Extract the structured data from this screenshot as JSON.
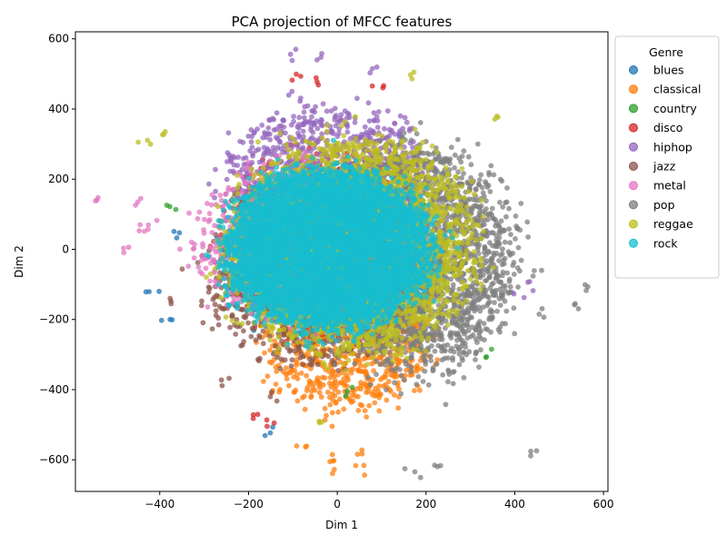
{
  "chart_data": {
    "type": "scatter",
    "title": "PCA projection of MFCC features",
    "xlabel": "Dim 1",
    "ylabel": "Dim 2",
    "xlim": [
      -590,
      610
    ],
    "ylim": [
      -690,
      620
    ],
    "xticks": [
      -400,
      -200,
      0,
      200,
      400,
      600
    ],
    "yticks": [
      -600,
      -400,
      -200,
      0,
      200,
      400,
      600
    ],
    "xtick_labels": [
      "−400",
      "−200",
      "0",
      "200",
      "400",
      "600"
    ],
    "ytick_labels": [
      "−600",
      "−400",
      "−200",
      "0",
      "200",
      "400",
      "600"
    ],
    "grid": false,
    "legend": {
      "title": "Genre",
      "placement": "outside-right-top"
    },
    "series": [
      {
        "name": "blues",
        "color": "#1f77b4",
        "center": [
          -20,
          -40
        ],
        "spread": [
          170,
          160
        ],
        "count": 900,
        "tails": [
          [
            -420,
            -120
          ],
          [
            -380,
            -200
          ],
          [
            -150,
            -520
          ],
          [
            -360,
            40
          ]
        ]
      },
      {
        "name": "classical",
        "color": "#ff7f0e",
        "center": [
          20,
          -230
        ],
        "spread": [
          140,
          170
        ],
        "count": 900,
        "tails": [
          [
            0,
            -620
          ],
          [
            60,
            -620
          ],
          [
            -80,
            -555
          ],
          [
            40,
            -580
          ],
          [
            -10,
            -600
          ]
        ]
      },
      {
        "name": "country",
        "color": "#2ca02c",
        "center": [
          0,
          0
        ],
        "spread": [
          170,
          170
        ],
        "count": 700,
        "tails": [
          [
            -370,
            130
          ],
          [
            340,
            -300
          ],
          [
            30,
            -400
          ]
        ]
      },
      {
        "name": "disco",
        "color": "#d62728",
        "center": [
          -20,
          20
        ],
        "spread": [
          170,
          180
        ],
        "count": 800,
        "tails": [
          [
            -150,
            -500
          ],
          [
            -190,
            -480
          ],
          [
            -40,
            480
          ],
          [
            90,
            460
          ],
          [
            -100,
            485
          ]
        ]
      },
      {
        "name": "hiphop",
        "color": "#9467bd",
        "center": [
          -20,
          200
        ],
        "spread": [
          170,
          150
        ],
        "count": 1000,
        "tails": [
          [
            -100,
            560
          ],
          [
            -40,
            545
          ],
          [
            90,
            515
          ],
          [
            410,
            -130
          ],
          [
            450,
            -90
          ]
        ]
      },
      {
        "name": "jazz",
        "color": "#8c564b",
        "center": [
          -60,
          -90
        ],
        "spread": [
          170,
          180
        ],
        "count": 900,
        "tails": [
          [
            -160,
            -430
          ],
          [
            -380,
            -150
          ],
          [
            -250,
            -380
          ]
        ]
      },
      {
        "name": "metal",
        "color": "#e377c2",
        "center": [
          -90,
          20
        ],
        "spread": [
          170,
          170
        ],
        "count": 800,
        "tails": [
          [
            -535,
            145
          ],
          [
            -480,
            10
          ],
          [
            -450,
            60
          ],
          [
            -445,
            130
          ],
          [
            -420,
            65
          ]
        ]
      },
      {
        "name": "pop",
        "color": "#7f7f7f",
        "center": [
          180,
          -30
        ],
        "spread": [
          160,
          240
        ],
        "count": 2200,
        "tails": [
          [
            555,
            -110
          ],
          [
            535,
            -155
          ],
          [
            440,
            -580
          ],
          [
            460,
            -175
          ],
          [
            450,
            -70
          ],
          [
            230,
            -620
          ],
          [
            180,
            -630
          ]
        ]
      },
      {
        "name": "reggae",
        "color": "#bcbd22",
        "center": [
          30,
          10
        ],
        "spread": [
          200,
          220
        ],
        "count": 3000,
        "tails": [
          [
            -420,
            305
          ],
          [
            -390,
            320
          ],
          [
            170,
            500
          ],
          [
            -50,
            -495
          ],
          [
            350,
            390
          ]
        ]
      },
      {
        "name": "rock",
        "color": "#17becf",
        "center": [
          -20,
          0
        ],
        "spread": [
          165,
          165
        ],
        "count": 6000,
        "tails": []
      }
    ]
  }
}
